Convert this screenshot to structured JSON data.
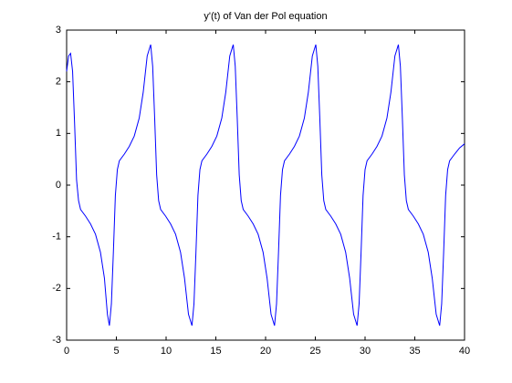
{
  "chart_data": {
    "type": "line",
    "title": "y'(t) of Van der Pol equation",
    "series": [
      {
        "color": "#0000ff",
        "x": [
          0,
          0.2,
          0.4,
          0.6,
          0.8,
          1.0,
          1.2,
          1.4,
          1.9,
          2.4,
          2.9,
          3.4,
          3.8,
          4.1,
          4.3,
          4.5,
          4.7,
          4.9,
          5.1,
          5.3,
          5.8,
          6.3,
          6.8,
          7.3,
          7.7,
          8.1,
          8.45,
          8.65,
          8.85,
          9.05,
          9.25,
          9.45,
          9.95,
          10.45,
          10.95,
          11.45,
          11.85,
          12.25,
          12.6,
          12.8,
          13.0,
          13.2,
          13.4,
          13.6,
          14.1,
          14.6,
          15.1,
          15.6,
          16.0,
          16.4,
          16.75,
          16.95,
          17.15,
          17.35,
          17.55,
          17.75,
          18.25,
          18.75,
          19.25,
          19.75,
          20.15,
          20.55,
          20.9,
          21.1,
          21.3,
          21.5,
          21.7,
          21.9,
          22.4,
          22.9,
          23.4,
          23.9,
          24.3,
          24.7,
          25.05,
          25.25,
          25.45,
          25.65,
          25.85,
          26.05,
          26.55,
          27.05,
          27.55,
          28.05,
          28.45,
          28.85,
          29.2,
          29.4,
          29.6,
          29.8,
          30.0,
          30.2,
          30.7,
          31.2,
          31.7,
          32.2,
          32.6,
          33.0,
          33.35,
          33.55,
          33.75,
          33.95,
          34.15,
          34.35,
          34.85,
          35.35,
          35.85,
          36.35,
          36.75,
          37.15,
          37.5,
          37.7,
          37.9,
          38.1,
          38.3,
          38.5,
          39.0,
          39.5,
          40.0
        ],
        "values": [
          2.2,
          2.5,
          2.55,
          2.2,
          1.2,
          0.1,
          -0.3,
          -0.47,
          -0.6,
          -0.75,
          -0.95,
          -1.3,
          -1.8,
          -2.5,
          -2.72,
          -2.3,
          -1.3,
          -0.2,
          0.3,
          0.47,
          0.6,
          0.75,
          0.95,
          1.3,
          1.8,
          2.5,
          2.72,
          2.3,
          1.3,
          0.2,
          -0.3,
          -0.47,
          -0.6,
          -0.75,
          -0.95,
          -1.3,
          -1.8,
          -2.5,
          -2.72,
          -2.3,
          -1.3,
          -0.2,
          0.3,
          0.47,
          0.6,
          0.75,
          0.95,
          1.3,
          1.8,
          2.5,
          2.72,
          2.3,
          1.3,
          0.2,
          -0.3,
          -0.47,
          -0.6,
          -0.75,
          -0.95,
          -1.3,
          -1.8,
          -2.5,
          -2.72,
          -2.3,
          -1.3,
          -0.2,
          0.3,
          0.47,
          0.6,
          0.75,
          0.95,
          1.3,
          1.8,
          2.5,
          2.72,
          2.3,
          1.3,
          0.2,
          -0.3,
          -0.47,
          -0.6,
          -0.75,
          -0.95,
          -1.3,
          -1.8,
          -2.5,
          -2.72,
          -2.3,
          -1.3,
          -0.2,
          0.3,
          0.47,
          0.6,
          0.75,
          0.95,
          1.3,
          1.8,
          2.5,
          2.72,
          2.3,
          1.3,
          0.2,
          -0.3,
          -0.47,
          -0.6,
          -0.75,
          -0.95,
          -1.3,
          -1.8,
          -2.5,
          -2.72,
          -2.3,
          -1.3,
          -0.2,
          0.3,
          0.47,
          0.6,
          0.72,
          0.8
        ]
      }
    ],
    "xlim": [
      0,
      40
    ],
    "xticks": [
      0,
      5,
      10,
      15,
      20,
      25,
      30,
      35,
      40
    ],
    "ylim": [
      -3,
      3
    ],
    "yticks": [
      -3,
      -2,
      -1,
      0,
      1,
      2,
      3
    ]
  }
}
